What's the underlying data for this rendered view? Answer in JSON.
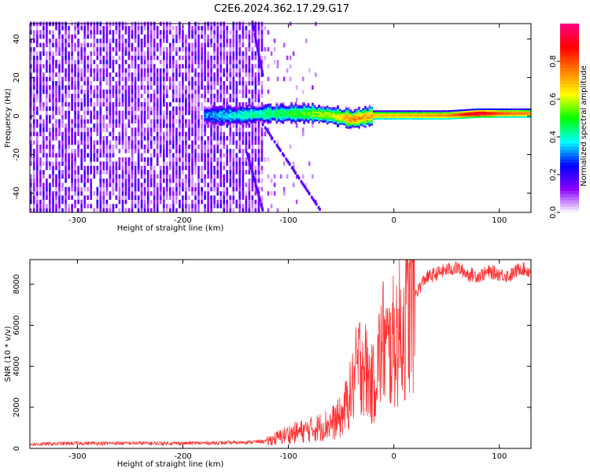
{
  "title": "C2E6.2024.362.17.29.G17",
  "chart_data": [
    {
      "type": "heatmap",
      "xlabel": "Height of straight line (km)",
      "ylabel": "Frequency (Hz)",
      "xlim": [
        -345,
        130
      ],
      "ylim": [
        -50,
        48
      ],
      "xticks": [
        -300,
        -200,
        -100,
        0,
        100
      ],
      "yticks": [
        -40,
        -20,
        0,
        20,
        40
      ],
      "colorbar": {
        "label": "Normalized spectral amplitude",
        "range": [
          0.0,
          1.0
        ],
        "ticks": [
          0.0,
          0.2,
          0.4,
          0.6,
          0.8
        ],
        "colors": [
          "#ffffff",
          "#8a00ff",
          "#0000ff",
          "#00ffff",
          "#00ff00",
          "#ffff00",
          "#ff8000",
          "#ff0000",
          "#ff0080"
        ]
      },
      "signal_band": {
        "x": [
          -180,
          -150,
          -120,
          -100,
          -80,
          -60,
          -40,
          -20,
          0,
          50,
          80,
          100,
          130
        ],
        "freq": [
          0,
          0,
          1,
          1,
          1,
          0,
          -2,
          0,
          0,
          0,
          1,
          1,
          1
        ],
        "amplitude": [
          0.3,
          0.4,
          0.45,
          0.5,
          0.55,
          0.6,
          0.75,
          0.7,
          0.7,
          0.75,
          0.95,
          0.8,
          0.75
        ]
      },
      "noise_region": {
        "x_range": [
          -345,
          -125
        ],
        "sparse_until": -65
      }
    },
    {
      "type": "line",
      "xlabel": "Height of straight line (km)",
      "ylabel": "SNR (10 * v/v)",
      "xlim": [
        -345,
        130
      ],
      "ylim": [
        0,
        9200
      ],
      "xticks": [
        -300,
        -200,
        -100,
        0,
        100
      ],
      "yticks": [
        0,
        2000,
        4000,
        6000,
        8000
      ],
      "color": "#ff3030",
      "x": [
        -345,
        -300,
        -250,
        -200,
        -150,
        -120,
        -100,
        -80,
        -60,
        -50,
        -40,
        -35,
        -30,
        -25,
        -20,
        -15,
        -10,
        -5,
        0,
        10,
        20,
        30,
        40,
        50,
        60,
        70,
        80,
        90,
        100,
        110,
        120,
        130
      ],
      "y": [
        200,
        250,
        250,
        250,
        280,
        350,
        700,
        900,
        1200,
        1500,
        2800,
        3800,
        4500,
        3500,
        3000,
        4200,
        5200,
        4600,
        5200,
        6000,
        7500,
        8300,
        8500,
        8700,
        8800,
        8500,
        8400,
        8600,
        8500,
        8400,
        8800,
        8600
      ]
    }
  ]
}
